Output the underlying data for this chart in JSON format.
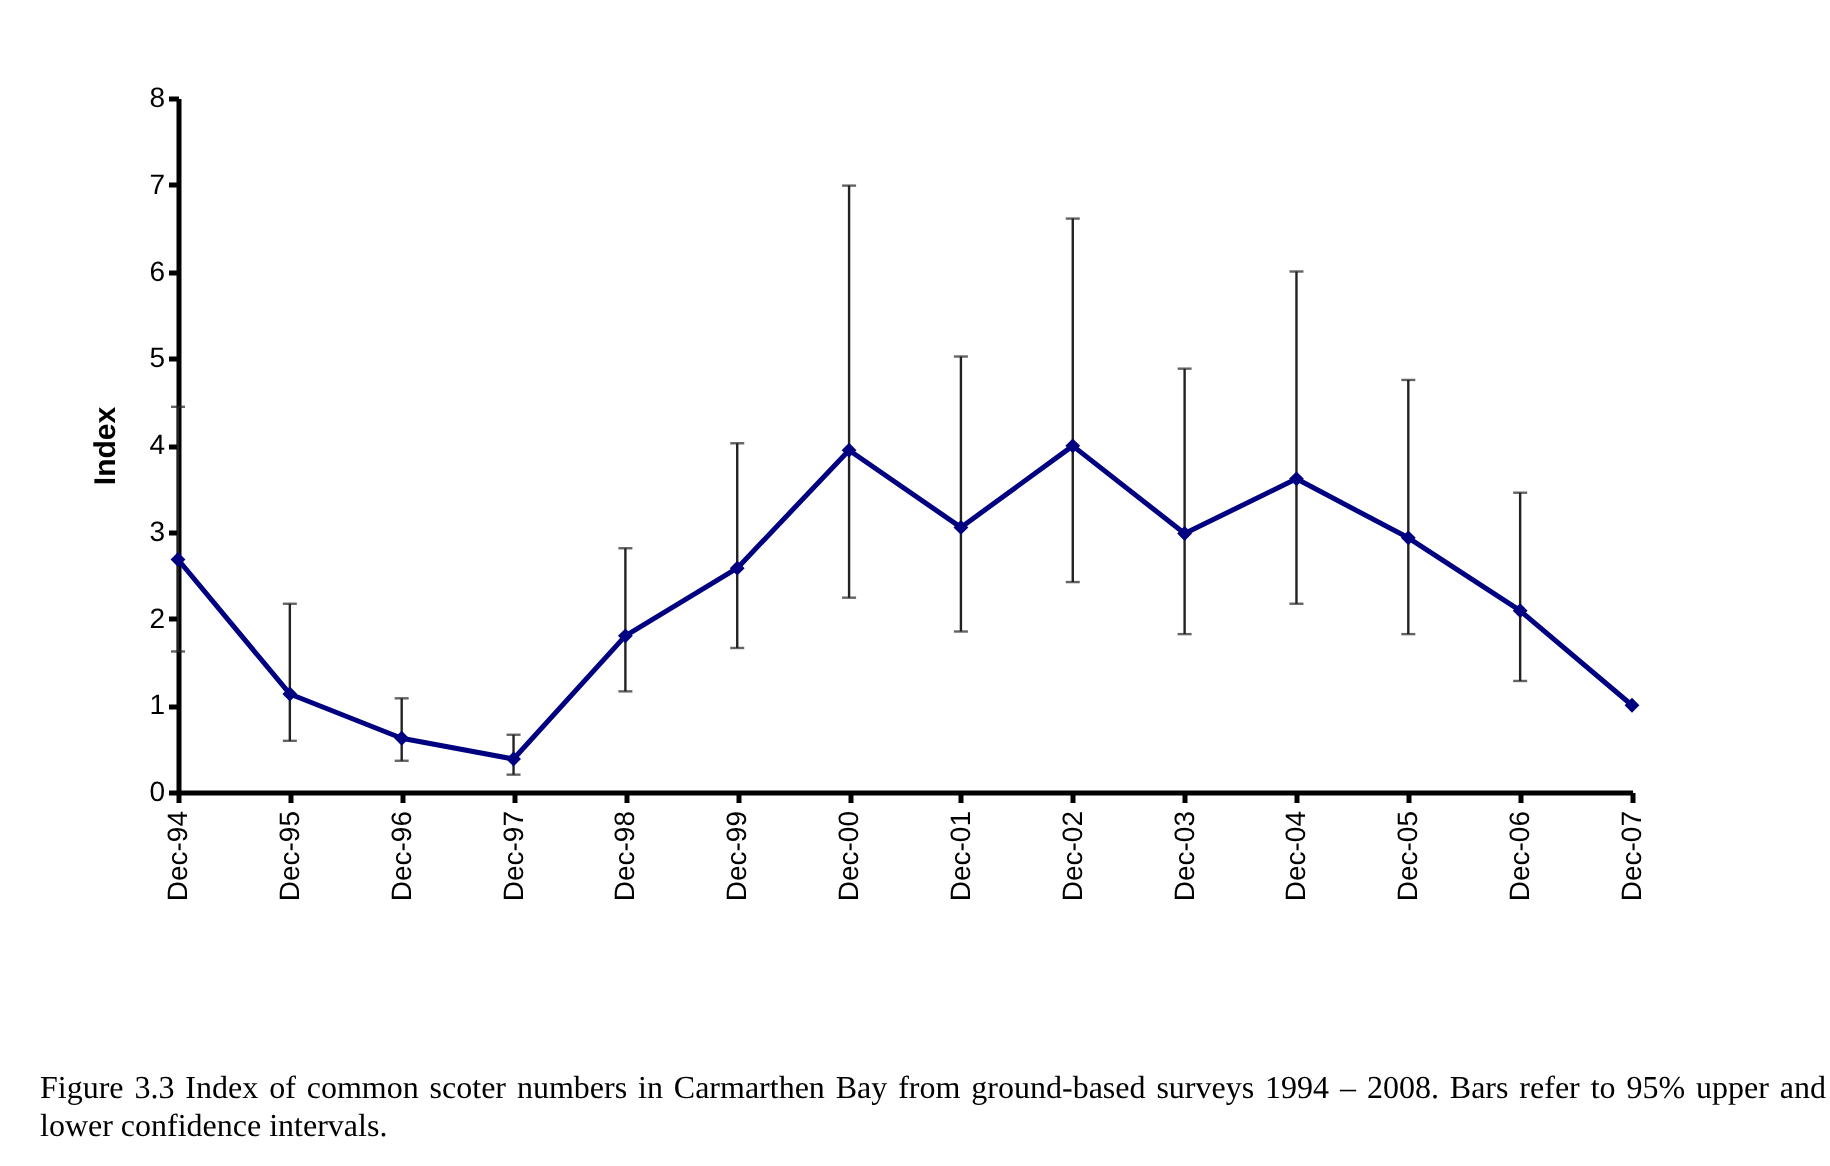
{
  "chart_data": {
    "type": "line",
    "ylabel": "Index",
    "categories": [
      "Dec-94",
      "Dec-95",
      "Dec-96",
      "Dec-97",
      "Dec-98",
      "Dec-99",
      "Dec-00",
      "Dec-01",
      "Dec-02",
      "Dec-03",
      "Dec-04",
      "Dec-05",
      "Dec-06",
      "Dec-07"
    ],
    "series": [
      {
        "color": "#000080",
        "values": [
          2.68,
          1.13,
          0.62,
          0.38,
          1.8,
          2.58,
          3.94,
          3.05,
          3.99,
          2.98,
          3.61,
          2.93,
          2.09,
          1.0
        ],
        "errors": [
          [
            1.62,
            4.44
          ],
          [
            0.59,
            2.17
          ],
          [
            0.36,
            1.08
          ],
          [
            0.2,
            0.66
          ],
          [
            1.16,
            2.81
          ],
          [
            1.66,
            4.02
          ],
          [
            2.24,
            6.99
          ],
          [
            1.85,
            5.02
          ],
          [
            2.42,
            6.61
          ],
          [
            1.82,
            4.88
          ],
          [
            2.17,
            6.0
          ],
          [
            1.82,
            4.75
          ],
          [
            1.28,
            3.45
          ],
          null
        ]
      }
    ],
    "ylim": [
      0,
      8
    ],
    "yticks": [
      0,
      1,
      2,
      3,
      4,
      5,
      6,
      7,
      8
    ],
    "marker": "diamond",
    "line_style": "solid",
    "annotations": [
      "Figure 3.3 Index of common scoter numbers in Carmarthen Bay from ground-based surveys 1994 – 2008. Bars refer to 95% upper and lower confidence intervals."
    ]
  }
}
